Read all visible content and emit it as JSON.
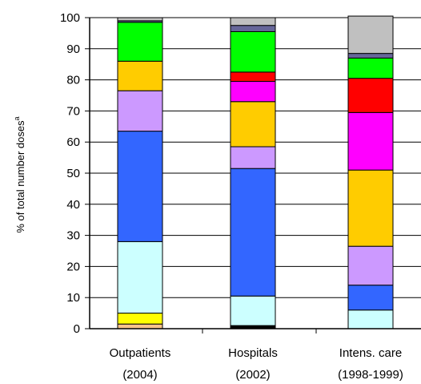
{
  "chart_data": {
    "type": "bar",
    "stacked": true,
    "ylabel": "% of total number doses",
    "ylabel_superscript": "a",
    "ylim": [
      0,
      100
    ],
    "yticks": [
      0,
      10,
      20,
      30,
      40,
      50,
      60,
      70,
      80,
      90,
      100
    ],
    "grid": true,
    "categories": [
      {
        "line1": "Outpatients",
        "line2": "(2004)"
      },
      {
        "line1": "Hospitals",
        "line2": "(2002)"
      },
      {
        "line1": "Intens. care",
        "line2": "(1998-1999)"
      }
    ],
    "segments": [
      {
        "colors": [
          "#f7c38a",
          "#ffff00",
          "#ccffff",
          "#3366ff",
          "#cc99ff",
          "#ffcc00",
          "#00ff00",
          "#666699",
          "#c0c0c0"
        ],
        "values": [
          1.5,
          3.5,
          23,
          35.5,
          13,
          9.5,
          12.5,
          0.5,
          1
        ]
      },
      {
        "colors": [
          "#000000",
          "#ccffff",
          "#3366ff",
          "#cc99ff",
          "#ffcc00",
          "#ff00ff",
          "#ff0000",
          "#00ff00",
          "#666699",
          "#c0c0c0"
        ],
        "values": [
          1,
          9.5,
          41,
          7,
          14.5,
          6.5,
          3,
          13,
          2,
          2.5
        ]
      },
      {
        "colors": [
          "#ccffff",
          "#3366ff",
          "#cc99ff",
          "#ffcc00",
          "#ff00ff",
          "#ff0000",
          "#00ff00",
          "#666699",
          "#c0c0c0"
        ],
        "values": [
          6,
          8,
          12.5,
          24.5,
          18.5,
          11,
          6.5,
          1.5,
          12
        ]
      }
    ]
  }
}
